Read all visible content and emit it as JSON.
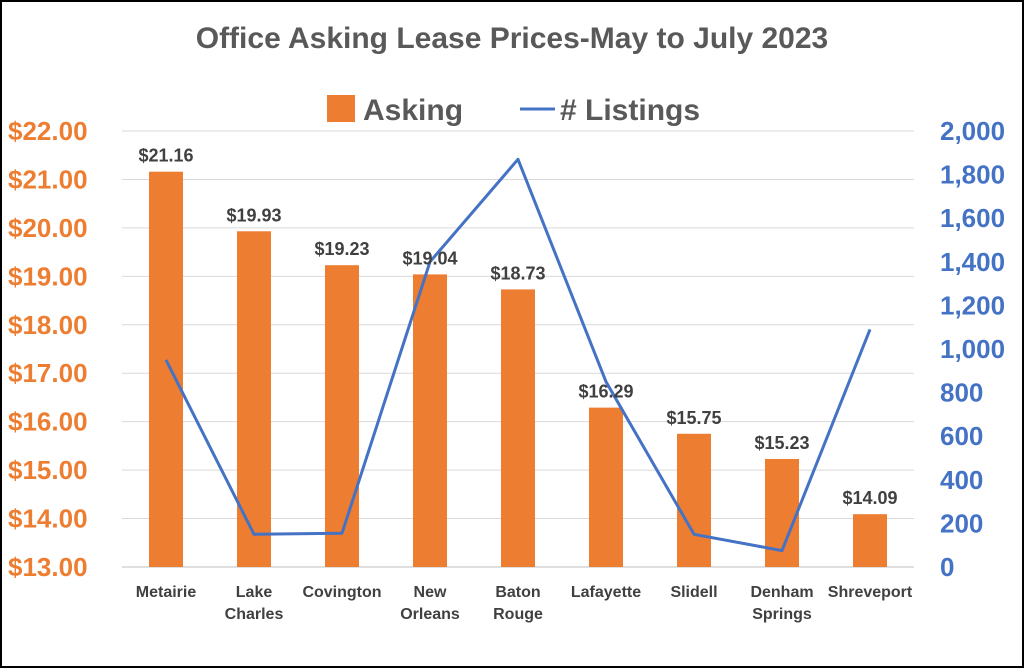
{
  "chart_data": {
    "type": "bar",
    "title": "Office Asking Lease Prices-May to July 2023",
    "categories": [
      "Metairie",
      "Lake Charles",
      "Covington",
      "New Orleans",
      "Baton Rouge",
      "Lafayette",
      "Slidell",
      "Denham Springs",
      "Shreveport"
    ],
    "category_lines": [
      [
        "Metairie"
      ],
      [
        "Lake",
        "Charles"
      ],
      [
        "Covington"
      ],
      [
        "New",
        "Orleans"
      ],
      [
        "Baton",
        "Rouge"
      ],
      [
        "Lafayette"
      ],
      [
        "Slidell"
      ],
      [
        "Denham",
        "Springs"
      ],
      [
        "Shreveport"
      ]
    ],
    "series": [
      {
        "name": "Asking",
        "type": "bar",
        "axis": "left",
        "color": "#ED7D31",
        "values": [
          21.16,
          19.93,
          19.23,
          19.04,
          18.73,
          16.29,
          15.75,
          15.23,
          14.09
        ],
        "data_labels": [
          "$21.16",
          "$19.93",
          "$19.23",
          "$19.04",
          "$18.73",
          "$16.29",
          "$15.75",
          "$15.23",
          "$14.09"
        ]
      },
      {
        "name": "# Listings",
        "type": "line",
        "axis": "right",
        "color": "#4472C4",
        "values": [
          950,
          150,
          155,
          1400,
          1870,
          850,
          150,
          75,
          1090
        ]
      }
    ],
    "y_left": {
      "min": 13,
      "max": 22,
      "ticks": [
        13,
        14,
        15,
        16,
        17,
        18,
        19,
        20,
        21,
        22
      ],
      "tick_labels": [
        "$13.00",
        "$14.00",
        "$15.00",
        "$16.00",
        "$17.00",
        "$18.00",
        "$19.00",
        "$20.00",
        "$21.00",
        "$22.00"
      ],
      "color": "#ED7D31"
    },
    "y_right": {
      "min": 0,
      "max": 2000,
      "ticks": [
        0,
        200,
        400,
        600,
        800,
        1000,
        1200,
        1400,
        1600,
        1800,
        2000
      ],
      "tick_labels": [
        "0",
        "200",
        "400",
        "600",
        "800",
        "1,000",
        "1,200",
        "1,400",
        "1,600",
        "1,800",
        "2,000"
      ],
      "color": "#4472C4"
    },
    "grid": true,
    "legend": "top"
  }
}
